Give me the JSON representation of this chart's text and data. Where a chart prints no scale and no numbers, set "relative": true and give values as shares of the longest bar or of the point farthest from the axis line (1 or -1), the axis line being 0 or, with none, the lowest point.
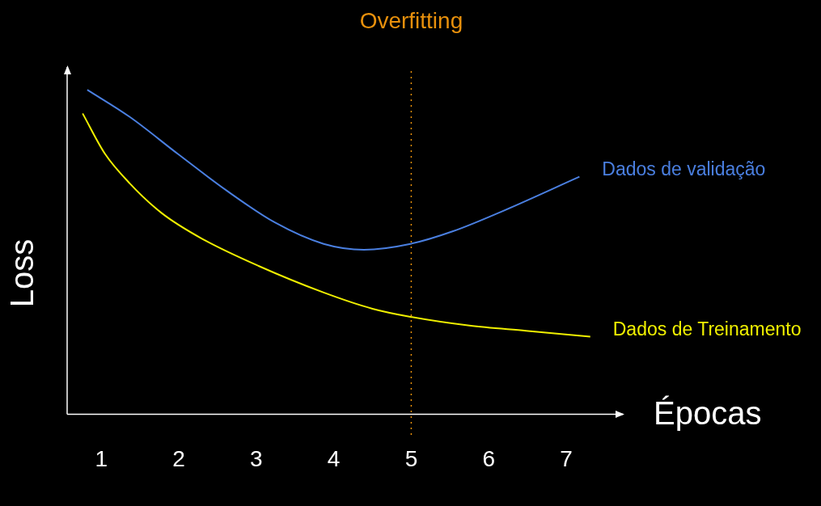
{
  "chart_data": {
    "type": "line",
    "relative": true,
    "xlabel": "Épocas",
    "ylabel": "Loss",
    "xlim": [
      0.56,
      7.73
    ],
    "xticks": [
      1,
      2,
      3,
      4,
      5,
      6,
      7
    ],
    "grid": false,
    "legend": false,
    "marker": "none",
    "line_style": "solid",
    "ref_lines": [
      {
        "axis": "x",
        "value": 5,
        "label": "Overfitting",
        "color": "#e8900c",
        "line_style": "dotted"
      }
    ],
    "series": [
      {
        "name": "Dados de validação",
        "color": "#4a7fe0",
        "x": [
          0.82,
          1.37,
          1.99,
          2.62,
          3.24,
          3.87,
          4.39,
          4.99,
          5.54,
          6.17,
          7.17
        ],
        "values": [
          1,
          0.916,
          0.802,
          0.689,
          0.591,
          0.525,
          0.507,
          0.525,
          0.564,
          0.625,
          0.732
        ]
      },
      {
        "name": "Dados de Treinamento",
        "color": "#f0f000",
        "x": [
          0.76,
          1.05,
          1.37,
          1.78,
          2.3,
          3.03,
          3.87,
          4.5,
          4.99,
          5.75,
          6.48,
          7.31
        ],
        "values": [
          0.927,
          0.802,
          0.711,
          0.62,
          0.541,
          0.457,
          0.375,
          0.325,
          0.3,
          0.273,
          0.257,
          0.239
        ]
      }
    ]
  }
}
